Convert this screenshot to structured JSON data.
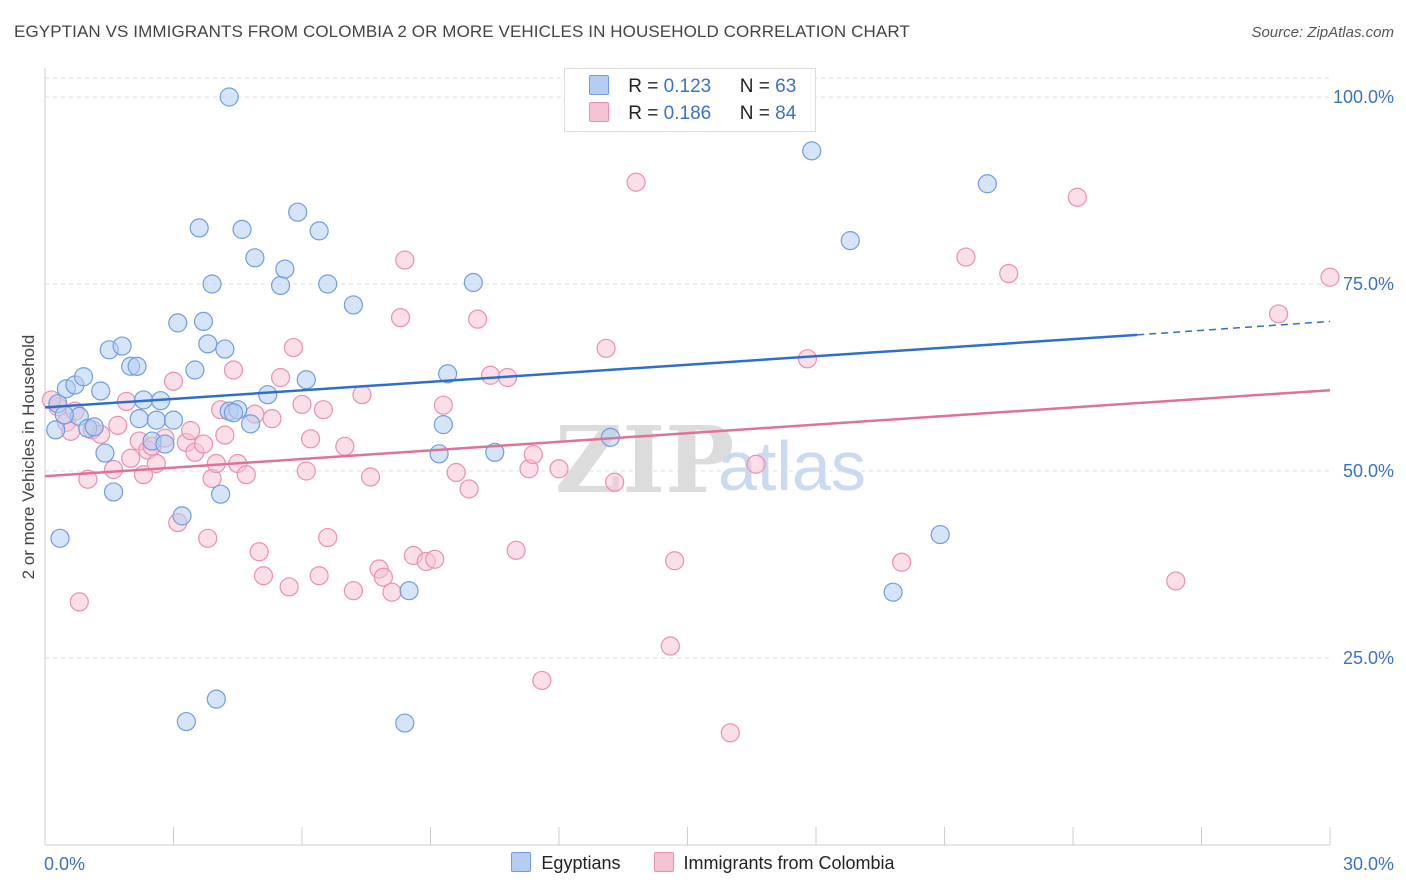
{
  "title": "EGYPTIAN VS IMMIGRANTS FROM COLOMBIA 2 OR MORE VEHICLES IN HOUSEHOLD CORRELATION CHART",
  "source": "Source: ZipAtlas.com",
  "colors": {
    "blue_fill": "#b5cdf0",
    "blue_stroke": "#6f9de0",
    "blue_line": "#2f6fcc",
    "pink_fill": "#f6c3d5",
    "pink_stroke": "#ea8fb0",
    "pink_line": "#e0719a",
    "axis_text": "#3a72c4",
    "grid": "#dddddd"
  },
  "legend_top": {
    "blue": {
      "r_label": "R = ",
      "r_value": "0.123",
      "n_label": "N = ",
      "n_value": "63"
    },
    "pink": {
      "r_label": "R = ",
      "r_value": "0.186",
      "n_label": "N = ",
      "n_value": "84"
    }
  },
  "chart_data": {
    "type": "scatter",
    "title": "EGYPTIAN VS IMMIGRANTS FROM COLOMBIA 2 OR MORE VEHICLES IN HOUSEHOLD CORRELATION CHART",
    "xlabel": "",
    "ylabel": "2 or more Vehicles in Household",
    "xlim": [
      0,
      30
    ],
    "ylim": [
      0,
      105
    ],
    "x_tick_labels": [
      "0.0%",
      "30.0%"
    ],
    "y_ticks": [
      25,
      50,
      75,
      100
    ],
    "y_tick_labels": [
      "25.0%",
      "50.0%",
      "75.0%",
      "100.0%"
    ],
    "grid": true,
    "legend": "bottom",
    "watermark": {
      "zip": "ZIP",
      "atlas": "atlas"
    },
    "series": [
      {
        "name": "Egyptians",
        "color": "blue",
        "trend": {
          "x0": 0,
          "y0": 58.5,
          "x1": 25.5,
          "y1": 68.2,
          "x_end": 30,
          "y_end": 70.0
        },
        "points": [
          [
            4.3,
            100
          ],
          [
            0.3,
            59.0
          ],
          [
            0.5,
            61.0
          ],
          [
            0.7,
            61.5
          ],
          [
            0.8,
            57.3
          ],
          [
            0.9,
            62.6
          ],
          [
            1.0,
            55.7
          ],
          [
            1.3,
            60.7
          ],
          [
            1.5,
            66.2
          ],
          [
            1.8,
            66.7
          ],
          [
            1.4,
            52.4
          ],
          [
            1.6,
            47.2
          ],
          [
            2.0,
            64.0
          ],
          [
            2.2,
            57.0
          ],
          [
            2.3,
            59.5
          ],
          [
            2.5,
            54.0
          ],
          [
            2.6,
            56.8
          ],
          [
            2.7,
            59.4
          ],
          [
            2.8,
            53.6
          ],
          [
            3.0,
            56.8
          ],
          [
            3.1,
            69.8
          ],
          [
            3.2,
            44.0
          ],
          [
            3.3,
            16.5
          ],
          [
            3.5,
            63.5
          ],
          [
            3.6,
            82.5
          ],
          [
            3.8,
            67.0
          ],
          [
            3.9,
            75.0
          ],
          [
            4.0,
            19.5
          ],
          [
            4.1,
            46.9
          ],
          [
            4.2,
            66.3
          ],
          [
            4.3,
            58.0
          ],
          [
            4.5,
            58.2
          ],
          [
            4.6,
            82.3
          ],
          [
            4.8,
            56.3
          ],
          [
            4.9,
            78.5
          ],
          [
            5.2,
            60.2
          ],
          [
            5.5,
            74.8
          ],
          [
            5.6,
            77.0
          ],
          [
            5.9,
            84.6
          ],
          [
            6.1,
            62.2
          ],
          [
            6.4,
            82.1
          ],
          [
            6.6,
            75.0
          ],
          [
            7.2,
            72.2
          ],
          [
            8.5,
            34.0
          ],
          [
            8.4,
            16.3
          ],
          [
            9.3,
            56.2
          ],
          [
            9.2,
            52.3
          ],
          [
            9.4,
            63.0
          ],
          [
            10.0,
            75.2
          ],
          [
            10.5,
            52.5
          ],
          [
            13.2,
            54.5
          ],
          [
            17.9,
            92.8
          ],
          [
            18.8,
            80.8
          ],
          [
            19.8,
            33.8
          ],
          [
            20.9,
            41.5
          ],
          [
            22.0,
            88.4
          ],
          [
            0.25,
            55.5
          ],
          [
            0.45,
            57.5
          ],
          [
            1.15,
            55.9
          ],
          [
            2.15,
            64.0
          ],
          [
            3.7,
            70.0
          ],
          [
            0.35,
            41.0
          ],
          [
            4.4,
            57.8
          ]
        ]
      },
      {
        "name": "Immigrants from Colombia",
        "color": "pink",
        "trend": {
          "x0": 0,
          "y0": 49.3,
          "x1": 30,
          "y1": 60.8
        },
        "points": [
          [
            0.3,
            58.6
          ],
          [
            0.5,
            56.5
          ],
          [
            0.6,
            55.3
          ],
          [
            0.8,
            32.5
          ],
          [
            1.0,
            48.9
          ],
          [
            1.1,
            55.5
          ],
          [
            1.3,
            54.9
          ],
          [
            1.6,
            50.2
          ],
          [
            1.7,
            56.1
          ],
          [
            1.9,
            59.3
          ],
          [
            2.0,
            51.7
          ],
          [
            2.2,
            54.0
          ],
          [
            2.3,
            49.5
          ],
          [
            2.4,
            52.8
          ],
          [
            2.5,
            53.3
          ],
          [
            2.6,
            51.0
          ],
          [
            2.8,
            54.4
          ],
          [
            3.0,
            62.0
          ],
          [
            3.1,
            43.1
          ],
          [
            3.3,
            53.8
          ],
          [
            3.4,
            55.4
          ],
          [
            3.5,
            52.5
          ],
          [
            3.7,
            53.6
          ],
          [
            3.8,
            41.0
          ],
          [
            3.9,
            49.0
          ],
          [
            4.0,
            51.0
          ],
          [
            4.1,
            58.2
          ],
          [
            4.2,
            54.8
          ],
          [
            4.4,
            63.5
          ],
          [
            4.5,
            51.0
          ],
          [
            4.7,
            49.5
          ],
          [
            4.9,
            57.6
          ],
          [
            5.0,
            39.2
          ],
          [
            5.1,
            36.0
          ],
          [
            5.3,
            57.0
          ],
          [
            5.5,
            62.5
          ],
          [
            5.7,
            34.5
          ],
          [
            5.8,
            66.5
          ],
          [
            6.0,
            58.9
          ],
          [
            6.1,
            50.0
          ],
          [
            6.2,
            54.3
          ],
          [
            6.4,
            36.0
          ],
          [
            6.5,
            58.2
          ],
          [
            6.6,
            41.1
          ],
          [
            7.0,
            53.3
          ],
          [
            7.2,
            34.0
          ],
          [
            7.4,
            60.2
          ],
          [
            7.6,
            49.2
          ],
          [
            7.8,
            36.9
          ],
          [
            7.9,
            35.8
          ],
          [
            8.1,
            33.8
          ],
          [
            8.3,
            70.5
          ],
          [
            8.4,
            78.2
          ],
          [
            8.6,
            38.7
          ],
          [
            8.9,
            37.9
          ],
          [
            9.1,
            38.2
          ],
          [
            9.3,
            58.8
          ],
          [
            9.6,
            49.8
          ],
          [
            9.9,
            47.6
          ],
          [
            10.1,
            70.3
          ],
          [
            10.4,
            62.8
          ],
          [
            10.8,
            62.5
          ],
          [
            11.0,
            39.4
          ],
          [
            11.3,
            50.3
          ],
          [
            11.4,
            52.2
          ],
          [
            11.6,
            22.0
          ],
          [
            12.0,
            50.3
          ],
          [
            13.1,
            66.4
          ],
          [
            13.3,
            48.5
          ],
          [
            13.8,
            88.6
          ],
          [
            14.6,
            26.6
          ],
          [
            14.7,
            38.0
          ],
          [
            16.0,
            15.0
          ],
          [
            16.6,
            50.9
          ],
          [
            17.8,
            65.0
          ],
          [
            20.0,
            37.8
          ],
          [
            21.5,
            78.6
          ],
          [
            22.5,
            76.4
          ],
          [
            24.1,
            86.6
          ],
          [
            26.4,
            35.3
          ],
          [
            28.8,
            71.0
          ],
          [
            30.0,
            75.9
          ],
          [
            0.15,
            59.5
          ],
          [
            0.7,
            58.0
          ]
        ]
      }
    ]
  },
  "legend_bottom": {
    "items": [
      "Egyptians",
      "Immigrants from Colombia"
    ]
  }
}
